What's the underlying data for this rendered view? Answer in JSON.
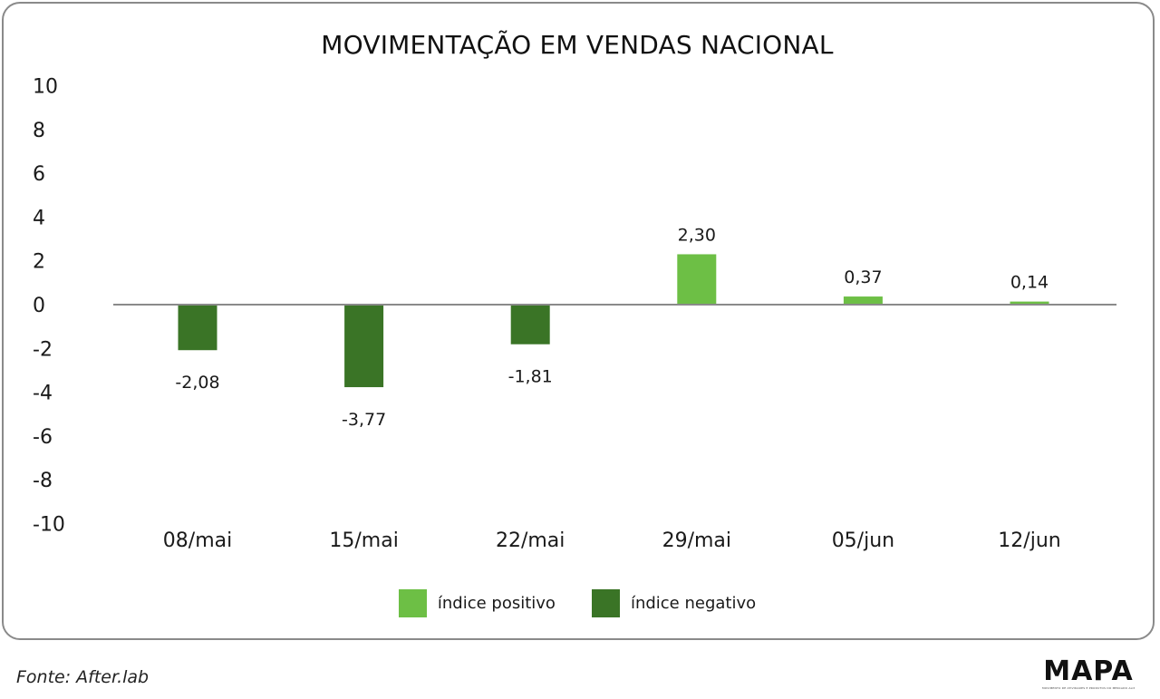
{
  "chart_data": {
    "type": "bar",
    "title": "MOVIMENTAÇÃO EM VENDAS NACIONAL",
    "categories": [
      "08/mai",
      "15/mai",
      "22/mai",
      "29/mai",
      "05/jun",
      "12/jun"
    ],
    "values": [
      -2.08,
      -3.77,
      -1.81,
      2.3,
      0.37,
      0.14
    ],
    "value_labels": [
      "-2,08",
      "-3,77",
      "-1,81",
      "2,30",
      "0,37",
      "0,14"
    ],
    "y_ticks": [
      10,
      8,
      6,
      4,
      2,
      0,
      -2,
      -4,
      -6,
      -8,
      -10
    ],
    "ylim": [
      -10,
      10
    ],
    "xlabel": "",
    "ylabel": "",
    "grid": false,
    "legend_position": "bottom-center",
    "legend": [
      {
        "name": "índice positivo",
        "color": "#6dbf45"
      },
      {
        "name": "índice negativo",
        "color": "#3a7426"
      }
    ],
    "colors": {
      "positive": "#6dbf45",
      "negative": "#3a7426",
      "axis": "#8a8a8a"
    }
  },
  "source": "Fonte: After.lab",
  "logo": {
    "name": "MAPA",
    "tagline": "MOVIMENTO DE ATIVIDADES E PRODUTOS DO MERCADO ALIMENTÍCIO"
  }
}
